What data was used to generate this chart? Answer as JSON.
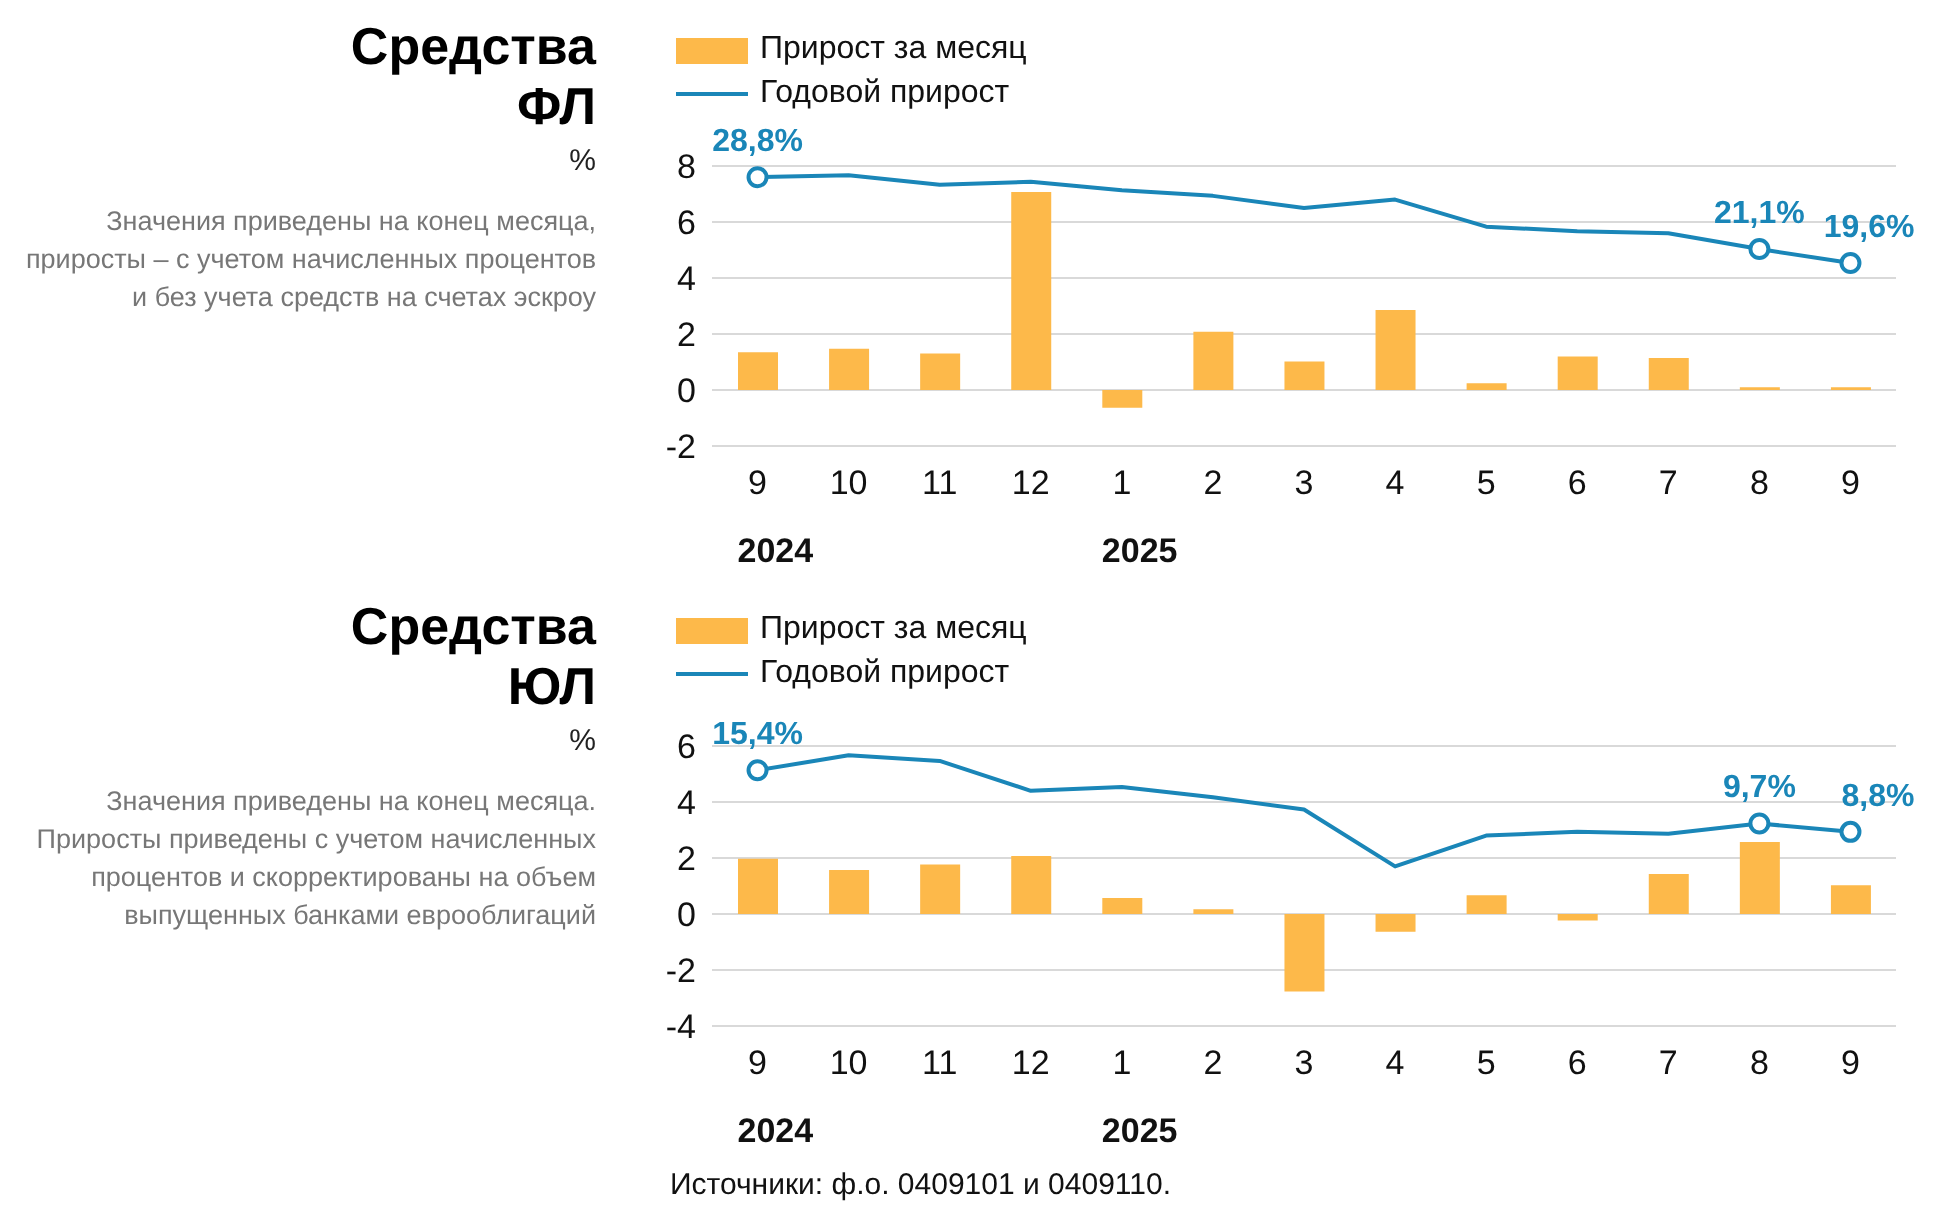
{
  "chart_data": [
    {
      "type": "bar",
      "title": "Средства ФЛ",
      "ylabel": "%",
      "annotations": [
        "Значения приведены на конец месяца, приросты – с учетом начисленных процентов и без учета средств на счетах эскроу",
        "2024",
        "2025"
      ],
      "categories": [
        "9",
        "10",
        "11",
        "12",
        "1",
        "2",
        "3",
        "4",
        "5",
        "6",
        "7",
        "8",
        "9"
      ],
      "series": [
        {
          "name": "Прирост за месяц",
          "color": "#fdb94a",
          "values": [
            1.35,
            1.47,
            1.3,
            7.07,
            -0.63,
            2.08,
            1.02,
            2.86,
            0.24,
            1.2,
            1.14,
            0.1,
            0.1
          ]
        },
        {
          "type": "line",
          "name": "Годовой прирост",
          "color": "#1a86b8",
          "axis": "y2",
          "values": [
            28.8,
            29.0,
            28.0,
            28.3,
            27.4,
            26.8,
            25.5,
            26.4,
            23.5,
            23.0,
            22.8,
            21.1,
            19.6
          ],
          "value_labels": [
            "28,8%",
            null,
            null,
            null,
            null,
            null,
            null,
            null,
            null,
            null,
            null,
            "21,1%",
            "19,6%"
          ]
        }
      ],
      "ylim": [
        -2,
        8
      ],
      "yticks": [
        -2,
        0,
        2,
        4,
        6,
        8
      ],
      "y2lim": [
        0,
        30
      ],
      "grid": "y",
      "legend": "top left"
    },
    {
      "type": "bar",
      "title": "Средства ЮЛ",
      "ylabel": "%",
      "annotations": [
        "Значения приведены на конец месяца. Приросты приведены с учетом начисленных процентов и скорректированы на объем выпущенных банками еврооблигаций",
        "2024",
        "2025",
        "Источники: ф.о. 0409101 и 0409110."
      ],
      "categories": [
        "9",
        "10",
        "11",
        "12",
        "1",
        "2",
        "3",
        "4",
        "5",
        "6",
        "7",
        "8",
        "9"
      ],
      "series": [
        {
          "name": "Прирост за месяц",
          "color": "#fdb94a",
          "values": [
            1.97,
            1.57,
            1.77,
            2.07,
            0.57,
            0.17,
            -2.77,
            -0.63,
            0.67,
            -0.23,
            1.43,
            2.57,
            1.03
          ]
        },
        {
          "type": "line",
          "name": "Годовой прирост",
          "color": "#1a86b8",
          "axis": "y2",
          "values": [
            15.4,
            17.0,
            16.4,
            13.2,
            13.6,
            12.5,
            11.2,
            5.1,
            8.4,
            8.8,
            8.6,
            9.7,
            8.8
          ],
          "value_labels": [
            "15,4%",
            null,
            null,
            null,
            null,
            null,
            null,
            null,
            null,
            null,
            null,
            "9,7%",
            "8,8%"
          ]
        }
      ],
      "ylim": [
        -4,
        6
      ],
      "yticks": [
        -4,
        -2,
        0,
        2,
        4,
        6
      ],
      "y2lim": [
        -12,
        18
      ],
      "grid": "y",
      "legend": "top left"
    }
  ]
}
